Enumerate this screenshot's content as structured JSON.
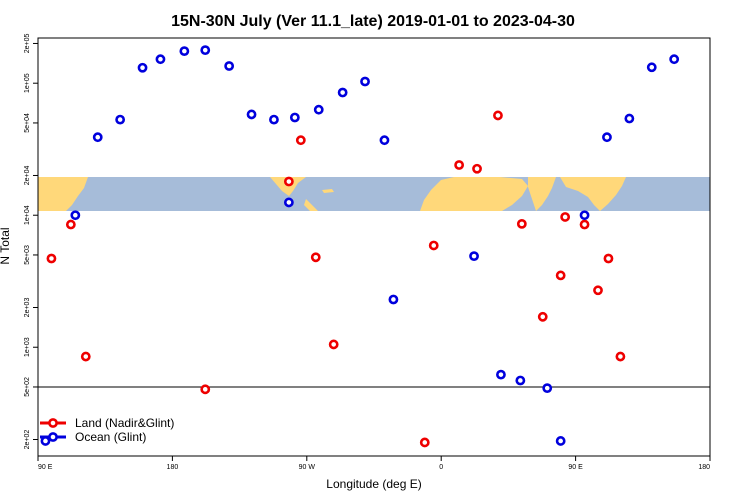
{
  "chart_data": {
    "type": "scatter",
    "title": "15N-30N July (Ver 11.1_late)   2019-01-01 to 2023-04-30",
    "xlabel": "Longitude (deg E)",
    "ylabel": "N Total",
    "x_ticks": [
      {
        "value": 90,
        "label": "90 E"
      },
      {
        "value": 180,
        "label": "180"
      },
      {
        "value": 270,
        "label": "90 W"
      },
      {
        "value": 360,
        "label": "0"
      },
      {
        "value": 450,
        "label": "90 E"
      },
      {
        "value": 540,
        "label": "180"
      }
    ],
    "y_ticks": [
      {
        "value": 200,
        "label": "2e+02"
      },
      {
        "value": 500,
        "label": "5e+02"
      },
      {
        "value": 1000,
        "label": "1e+03"
      },
      {
        "value": 2000,
        "label": "2e+03"
      },
      {
        "value": 5000,
        "label": "5e+03"
      },
      {
        "value": 10000,
        "label": "1e+04"
      },
      {
        "value": 20000,
        "label": "2e+04"
      },
      {
        "value": 50000,
        "label": "5e+04"
      },
      {
        "value": 100000,
        "label": "1e+05"
      },
      {
        "value": 200000,
        "label": "2e+05"
      }
    ],
    "xlim": [
      90,
      540
    ],
    "ylim_log": [
      150,
      220000
    ],
    "reference_line_y": 500,
    "map_band": {
      "longitude_start": 90,
      "longitude_end": 540,
      "latitude_range": "15N-30N"
    },
    "legend": {
      "position": "bottom-left"
    },
    "series": [
      {
        "name": "Land (Nadir&Glint)",
        "color": "#ee0000",
        "points": [
          [
            99,
            4700
          ],
          [
            112,
            8500
          ],
          [
            122,
            850
          ],
          [
            202,
            480
          ],
          [
            258,
            18000
          ],
          [
            266,
            37000
          ],
          [
            276,
            4800
          ],
          [
            288,
            1050
          ],
          [
            349,
            190
          ],
          [
            355,
            5900
          ],
          [
            372,
            24000
          ],
          [
            384,
            22500
          ],
          [
            398,
            57000
          ],
          [
            414,
            8600
          ],
          [
            428,
            1700
          ],
          [
            440,
            3500
          ],
          [
            443,
            9700
          ],
          [
            456,
            8500
          ],
          [
            465,
            2700
          ],
          [
            472,
            4700
          ],
          [
            480,
            850
          ]
        ]
      },
      {
        "name": "Ocean (Glint)",
        "color": "#0000dd",
        "points": [
          [
            95,
            195
          ],
          [
            115,
            10000
          ],
          [
            130,
            39000
          ],
          [
            145,
            53000
          ],
          [
            160,
            131000
          ],
          [
            172,
            152000
          ],
          [
            188,
            175000
          ],
          [
            202,
            178000
          ],
          [
            218,
            135000
          ],
          [
            233,
            58000
          ],
          [
            248,
            53000
          ],
          [
            258,
            12500
          ],
          [
            262,
            55000
          ],
          [
            278,
            63000
          ],
          [
            294,
            85000
          ],
          [
            309,
            103000
          ],
          [
            322,
            37000
          ],
          [
            328,
            2300
          ],
          [
            382,
            4900
          ],
          [
            400,
            620
          ],
          [
            413,
            560
          ],
          [
            431,
            490
          ],
          [
            440,
            195
          ],
          [
            456,
            10000
          ],
          [
            471,
            39000
          ],
          [
            486,
            54000
          ],
          [
            501,
            132000
          ],
          [
            516,
            152000
          ]
        ]
      }
    ]
  }
}
